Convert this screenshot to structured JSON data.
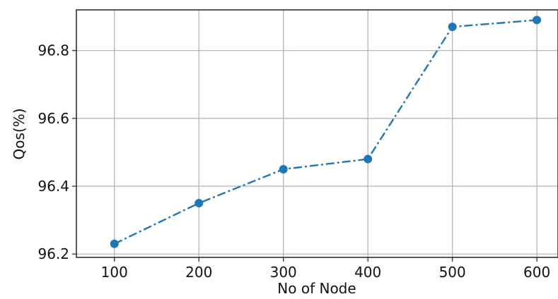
{
  "chart_data": {
    "type": "line",
    "title": "",
    "xlabel": "No of Node",
    "ylabel": "Qos(%)",
    "x": [
      100,
      200,
      300,
      400,
      500,
      600
    ],
    "series": [
      {
        "values": [
          96.23,
          96.35,
          96.45,
          96.48,
          96.87,
          96.89
        ],
        "color": "#1f77b4",
        "line_style": "dash-dot",
        "marker": "circle"
      }
    ],
    "xticks": [
      "100",
      "200",
      "300",
      "400",
      "500",
      "600"
    ],
    "yticks": [
      "96.2",
      "96.4",
      "96.6",
      "96.8"
    ],
    "xlim": [
      55,
      625
    ],
    "ylim": [
      96.19,
      96.92
    ],
    "grid": true,
    "legend": "none"
  }
}
